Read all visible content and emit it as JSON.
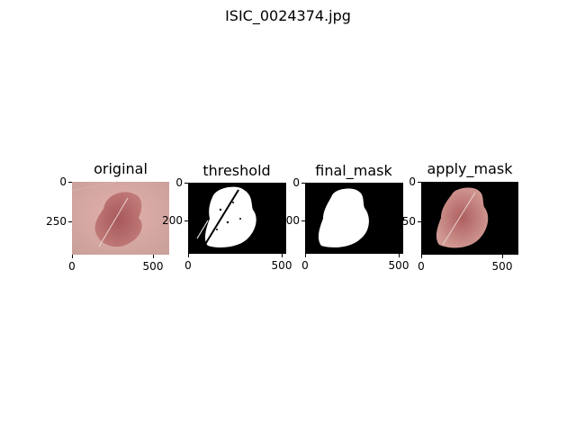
{
  "figure": {
    "suptitle": "ISIC_0024374.jpg"
  },
  "panels": [
    {
      "title": "original",
      "xticks": [
        "0",
        "500"
      ],
      "yticks": [
        "0",
        "250"
      ]
    },
    {
      "title": "threshold",
      "xticks": [
        "0",
        "500"
      ],
      "yticks": [
        "0",
        "200"
      ]
    },
    {
      "title": "final_mask",
      "xticks": [
        "0",
        "500"
      ],
      "yticks": [
        "0",
        "200"
      ]
    },
    {
      "title": "apply_mask",
      "xticks": [
        "0",
        "500"
      ],
      "yticks": [
        "0",
        "250"
      ]
    }
  ],
  "colors": {
    "skin": "#d7a29f",
    "lesion": "#b86a68",
    "mask_bg": "#000000",
    "mask_fg": "#ffffff"
  }
}
